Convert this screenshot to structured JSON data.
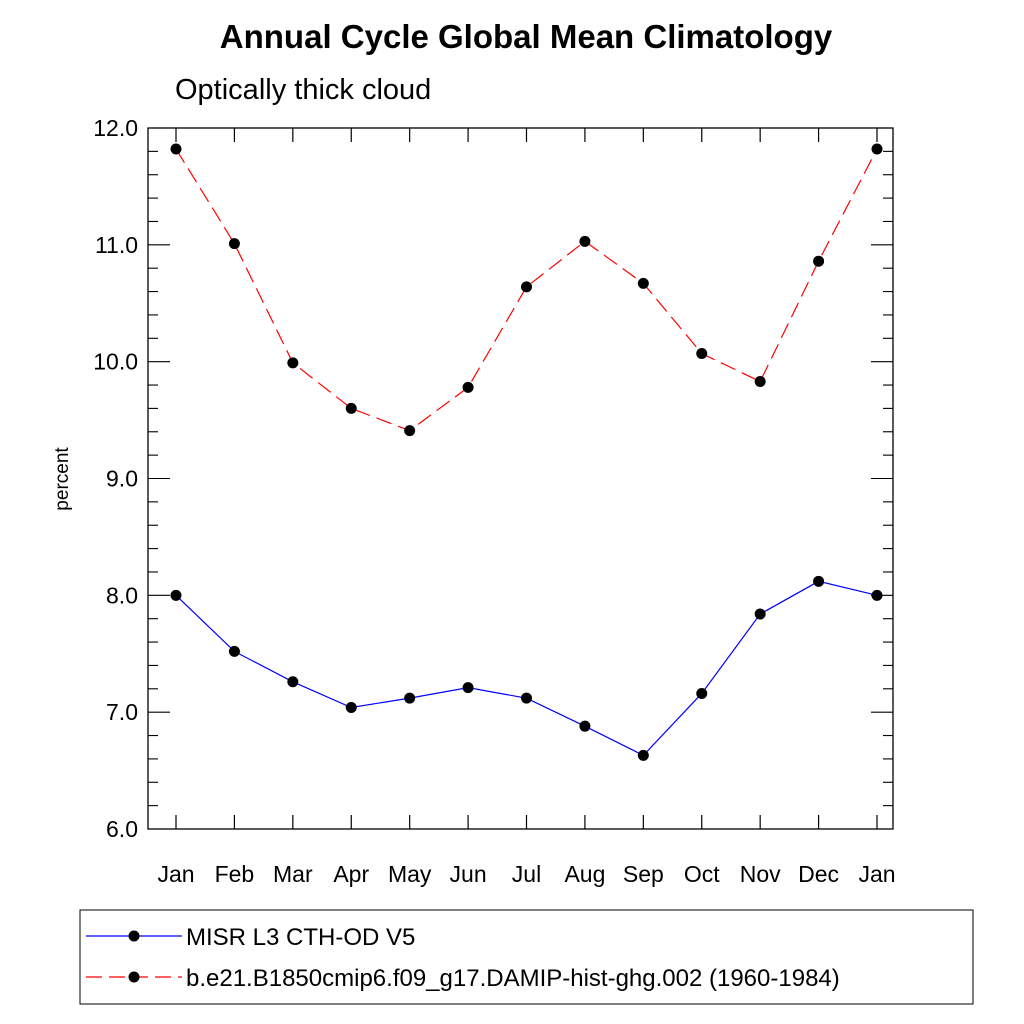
{
  "chart_data": {
    "type": "line",
    "title": "Annual Cycle Global Mean Climatology",
    "subtitle": "Optically thick cloud",
    "ylabel": "percent",
    "xlabel": "",
    "categories": [
      "Jan",
      "Feb",
      "Mar",
      "Apr",
      "May",
      "Jun",
      "Jul",
      "Aug",
      "Sep",
      "Oct",
      "Nov",
      "Dec",
      "Jan"
    ],
    "ylim": [
      6.0,
      12.0
    ],
    "yticks": [
      "6.0",
      "7.0",
      "8.0",
      "9.0",
      "10.0",
      "11.0",
      "12.0"
    ],
    "grid": false,
    "legend_position": "bottom",
    "series": [
      {
        "name": "MISR L3 CTH-OD V5",
        "color": "#0000ff",
        "style": "solid",
        "marker": "dot",
        "values": [
          8.0,
          7.52,
          7.26,
          7.04,
          7.12,
          7.21,
          7.12,
          6.88,
          6.63,
          7.16,
          7.84,
          8.12,
          8.0
        ]
      },
      {
        "name": "b.e21.B1850cmip6.f09_g17.DAMIP-hist-ghg.002 (1960-1984)",
        "color": "#ff0000",
        "style": "dashed",
        "marker": "dot",
        "values": [
          11.82,
          11.01,
          9.99,
          9.6,
          9.41,
          9.78,
          10.64,
          11.03,
          10.67,
          10.07,
          9.83,
          10.86,
          11.82
        ]
      }
    ]
  }
}
